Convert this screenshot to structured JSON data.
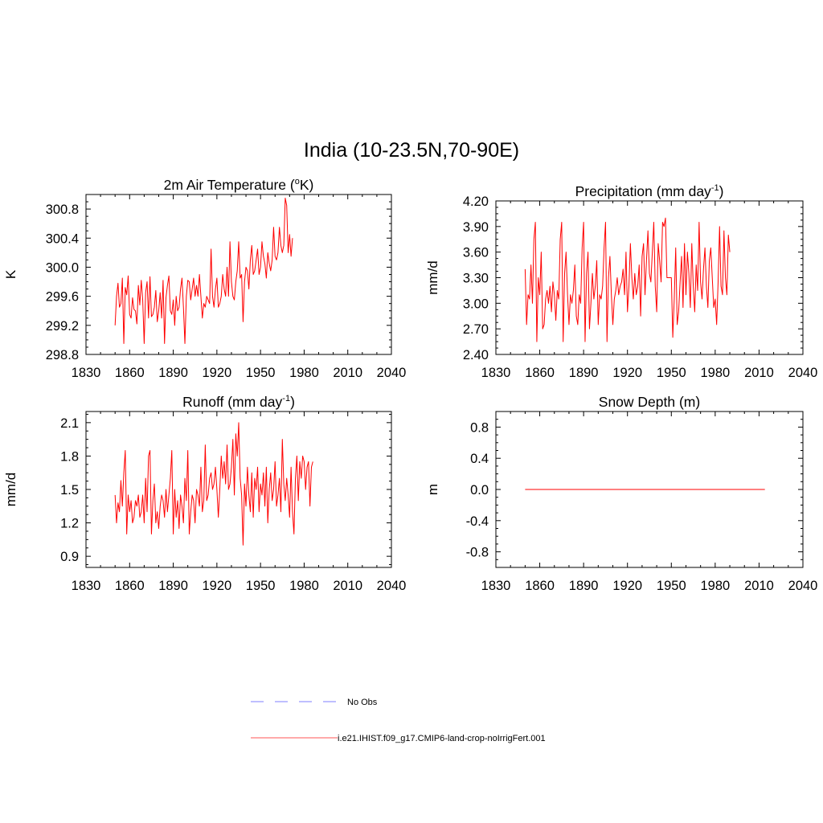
{
  "figure": {
    "title": "India (10-23.5N,70-90E)"
  },
  "legend": {
    "items": [
      {
        "label": "No Obs",
        "color": "#9999ff",
        "style": "dashed"
      },
      {
        "label": "i.e21.IHIST.f09_g17.CMIP6-land-crop-noIrrigFert.001",
        "color": "#ff7777",
        "style": "solid"
      }
    ]
  },
  "chart_data": [
    {
      "type": "line",
      "title": "2m Air Temperature (°K)",
      "title_parts": {
        "before": "2m Air Temperature (",
        "sup": "o",
        "after": "K)"
      },
      "ylabel": "K",
      "xlim": [
        1830,
        2040
      ],
      "ylim": [
        298.8,
        301.0
      ],
      "xticks": [
        1830,
        1860,
        1890,
        1920,
        1950,
        1980,
        2010,
        2040
      ],
      "yticks": [
        298.8,
        299.2,
        299.6,
        300.0,
        300.4,
        300.8
      ],
      "ytick_labels": [
        "298.8",
        "299.2",
        "299.6",
        "300.0",
        "300.4",
        "300.8"
      ],
      "grid": false,
      "series": [
        {
          "color": "#ff0000",
          "x_start": 1850,
          "x_step": 1,
          "values": [
            299.2,
            299.6,
            299.78,
            299.45,
            299.5,
            299.85,
            298.95,
            299.72,
            299.62,
            299.88,
            299.35,
            299.3,
            299.58,
            299.42,
            299.4,
            299.22,
            299.75,
            299.48,
            299.82,
            299.55,
            298.95,
            299.65,
            299.8,
            299.3,
            299.87,
            299.32,
            299.35,
            299.45,
            299.68,
            299.25,
            299.4,
            299.65,
            299.3,
            299.82,
            298.95,
            299.58,
            299.75,
            299.88,
            299.4,
            299.35,
            299.55,
            299.2,
            299.6,
            299.4,
            299.45,
            299.7,
            299.85,
            299.45,
            298.95,
            299.6,
            299.82,
            299.8,
            299.55,
            299.7,
            299.85,
            299.6,
            299.75,
            299.6,
            299.9,
            299.6,
            299.3,
            299.5,
            299.45,
            299.6,
            299.55,
            299.5,
            300.25,
            299.6,
            299.45,
            299.7,
            299.85,
            299.45,
            299.5,
            299.6,
            299.9,
            299.7,
            299.6,
            300.0,
            299.6,
            300.35,
            299.8,
            299.6,
            299.55,
            299.8,
            299.95,
            300.35,
            299.85,
            299.9,
            299.25,
            299.8,
            300.0,
            299.95,
            299.7,
            300.1,
            300.3,
            299.9,
            299.95,
            300.1,
            300.25,
            299.9,
            300.0,
            300.35,
            300.15,
            300.05,
            299.85,
            300.2,
            300.05,
            299.95,
            300.1,
            300.55,
            300.15,
            300.1,
            300.2,
            300.55,
            300.3,
            300.2,
            300.3,
            300.95,
            300.85,
            300.2,
            300.45,
            300.15,
            300.4
          ]
        }
      ]
    },
    {
      "type": "line",
      "title": "Precipitation (mm day⁻¹)",
      "title_parts": {
        "before": "Precipitation (mm day",
        "sup": "-1",
        "after": ")"
      },
      "ylabel": "mm/d",
      "xlim": [
        1830,
        2040
      ],
      "ylim": [
        2.4,
        4.2
      ],
      "xticks": [
        1830,
        1860,
        1890,
        1920,
        1950,
        1980,
        2010,
        2040
      ],
      "yticks": [
        2.4,
        2.7,
        3.0,
        3.3,
        3.6,
        3.9,
        4.2
      ],
      "ytick_labels": [
        "2.40",
        "2.70",
        "3.00",
        "3.30",
        "3.60",
        "3.90",
        "4.20"
      ],
      "grid": false,
      "series": [
        {
          "color": "#ff0000",
          "x_start": 1850,
          "x_step": 1,
          "values": [
            3.4,
            2.75,
            3.1,
            3.05,
            3.45,
            3.0,
            3.75,
            3.95,
            2.55,
            3.3,
            3.1,
            3.6,
            2.7,
            2.75,
            3.05,
            3.15,
            3.0,
            3.2,
            2.9,
            3.25,
            3.1,
            2.8,
            3.15,
            3.05,
            3.75,
            3.95,
            2.55,
            3.35,
            3.6,
            3.1,
            2.75,
            3.1,
            3.0,
            3.15,
            3.45,
            2.85,
            2.75,
            3.1,
            3.0,
            3.65,
            3.95,
            2.55,
            3.35,
            3.6,
            2.7,
            3.0,
            3.35,
            3.05,
            3.2,
            3.5,
            2.75,
            3.1,
            3.05,
            3.2,
            3.65,
            3.95,
            2.55,
            3.3,
            3.55,
            3.1,
            2.75,
            3.05,
            3.15,
            3.3,
            3.1,
            3.2,
            3.25,
            3.4,
            3.1,
            3.6,
            2.9,
            3.2,
            3.7,
            3.3,
            3.05,
            3.35,
            3.1,
            3.2,
            3.45,
            2.85,
            3.55,
            3.7,
            3.1,
            3.5,
            3.85,
            3.35,
            3.25,
            3.6,
            3.95,
            3.2,
            2.9,
            3.7,
            3.5,
            3.25,
            3.95,
            3.9,
            4.0,
            3.3,
            3.3,
            3.3,
            3.3,
            2.6,
            3.05,
            3.65,
            2.75,
            2.9,
            3.25,
            3.55,
            2.95,
            3.7,
            3.1,
            3.6,
            3.35,
            2.95,
            3.7,
            3.2,
            2.9,
            3.45,
            3.15,
            3.95,
            3.25,
            3.05,
            3.4,
            3.65,
            3.2,
            2.95,
            3.5,
            3.65,
            3.3,
            2.95,
            3.05,
            2.75,
            3.25,
            3.9,
            3.2,
            3.1,
            3.85,
            3.3,
            3.1,
            3.8,
            3.6
          ]
        }
      ]
    },
    {
      "type": "line",
      "title": "Runoff (mm day⁻¹)",
      "title_parts": {
        "before": "Runoff (mm day",
        "sup": "-1",
        "after": ")"
      },
      "ylabel": "mm/d",
      "xlim": [
        1830,
        2040
      ],
      "ylim": [
        0.8,
        2.2
      ],
      "xticks": [
        1830,
        1860,
        1890,
        1920,
        1950,
        1980,
        2010,
        2040
      ],
      "yticks": [
        0.9,
        1.2,
        1.5,
        1.8,
        2.1
      ],
      "ytick_labels": [
        "0.9",
        "1.2",
        "1.5",
        "1.8",
        "2.1"
      ],
      "grid": false,
      "series": [
        {
          "color": "#ff0000",
          "x_start": 1850,
          "x_step": 1,
          "values": [
            1.45,
            1.2,
            1.38,
            1.3,
            1.58,
            1.35,
            1.65,
            1.85,
            1.1,
            1.45,
            1.3,
            1.4,
            1.2,
            1.25,
            1.4,
            1.35,
            1.45,
            1.25,
            1.3,
            1.45,
            1.2,
            1.6,
            1.3,
            1.8,
            1.85,
            1.1,
            1.4,
            1.55,
            1.2,
            1.3,
            1.15,
            1.35,
            1.45,
            1.4,
            1.25,
            1.5,
            1.3,
            1.45,
            1.6,
            1.85,
            1.1,
            1.5,
            1.25,
            1.4,
            1.15,
            1.45,
            1.35,
            1.2,
            1.6,
            1.4,
            1.85,
            1.1,
            1.3,
            1.45,
            1.4,
            1.2,
            1.5,
            1.45,
            1.35,
            1.7,
            1.3,
            1.4,
            1.9,
            1.4,
            1.45,
            1.6,
            1.65,
            1.5,
            1.55,
            1.7,
            1.5,
            1.25,
            1.5,
            1.8,
            1.6,
            1.75,
            1.55,
            1.9,
            1.5,
            1.55,
            1.7,
            1.95,
            1.45,
            2.0,
            1.8,
            2.1,
            1.6,
            1.45,
            1.0,
            1.55,
            1.35,
            1.7,
            1.45,
            1.3,
            1.65,
            1.25,
            1.6,
            1.5,
            1.7,
            1.3,
            1.55,
            1.45,
            1.65,
            1.35,
            1.7,
            1.2,
            1.5,
            1.65,
            1.4,
            1.5,
            1.75,
            1.35,
            1.45,
            1.6,
            1.3,
            1.95,
            1.55,
            1.4,
            1.6,
            1.45,
            1.25,
            1.7,
            1.3,
            1.1,
            1.6,
            1.8,
            1.4,
            1.75,
            1.6,
            1.8,
            1.75,
            1.5,
            1.7,
            1.75,
            1.35,
            1.7,
            1.75
          ]
        }
      ]
    },
    {
      "type": "line",
      "title": "Snow Depth (m)",
      "title_parts": {
        "before": "Snow Depth (m)",
        "sup": "",
        "after": ""
      },
      "ylabel": "m",
      "xlim": [
        1830,
        2040
      ],
      "ylim": [
        -1.0,
        1.0
      ],
      "xticks": [
        1830,
        1860,
        1890,
        1920,
        1950,
        1980,
        2010,
        2040
      ],
      "yticks": [
        -0.8,
        -0.4,
        0.0,
        0.4,
        0.8
      ],
      "ytick_labels": [
        "-0.8",
        "-0.4",
        "0.0",
        "0.4",
        "0.8"
      ],
      "grid": false,
      "series": [
        {
          "color": "#ff0000",
          "x_start": 1850,
          "x_step": 1,
          "values": [
            0,
            0,
            0,
            0,
            0,
            0,
            0,
            0,
            0,
            0,
            0,
            0,
            0,
            0,
            0,
            0,
            0,
            0,
            0,
            0,
            0,
            0,
            0,
            0,
            0,
            0,
            0,
            0,
            0,
            0,
            0,
            0,
            0,
            0,
            0,
            0,
            0,
            0,
            0,
            0,
            0,
            0,
            0,
            0,
            0,
            0,
            0,
            0,
            0,
            0,
            0,
            0,
            0,
            0,
            0,
            0,
            0,
            0,
            0,
            0,
            0,
            0,
            0,
            0,
            0,
            0,
            0,
            0,
            0,
            0,
            0,
            0,
            0,
            0,
            0,
            0,
            0,
            0,
            0,
            0,
            0,
            0,
            0,
            0,
            0,
            0,
            0,
            0,
            0,
            0,
            0,
            0,
            0,
            0,
            0,
            0,
            0,
            0,
            0,
            0,
            0,
            0,
            0,
            0,
            0,
            0,
            0,
            0,
            0,
            0,
            0,
            0,
            0,
            0,
            0,
            0,
            0,
            0,
            0,
            0,
            0,
            0,
            0,
            0,
            0,
            0,
            0,
            0,
            0,
            0,
            0,
            0,
            0,
            0,
            0,
            0,
            0,
            0,
            0,
            0,
            0,
            0,
            0,
            0,
            0,
            0,
            0,
            0,
            0,
            0,
            0,
            0,
            0,
            0,
            0,
            0,
            0,
            0,
            0,
            0,
            0,
            0,
            0,
            0,
            0
          ]
        }
      ]
    }
  ]
}
